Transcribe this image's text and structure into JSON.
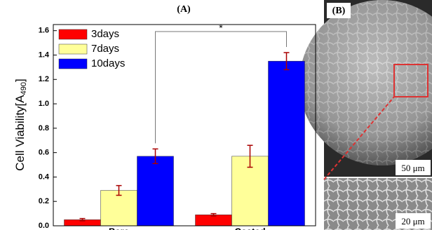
{
  "chart_data": {
    "type": "bar",
    "title": "(A)",
    "y_label": {
      "text": "Cell Viability[A",
      "subscript": "490",
      "suffix": "]"
    },
    "categories": [
      "Bare",
      "Coated"
    ],
    "series": [
      {
        "name": "3days",
        "color": "#ff0000",
        "values": [
          0.05,
          0.09
        ],
        "errors": [
          0.01,
          0.01
        ]
      },
      {
        "name": "7days",
        "color": "#ffff99",
        "values": [
          0.29,
          0.57
        ],
        "errors": [
          0.04,
          0.09
        ]
      },
      {
        "name": "10days",
        "color": "#0000ff",
        "values": [
          0.57,
          1.35
        ],
        "errors": [
          0.06,
          0.07
        ]
      }
    ],
    "ylim": [
      0,
      1.65
    ],
    "yticks": [
      {
        "value": 0,
        "label": "0.0"
      },
      0.2,
      0.4,
      0.6,
      0.8,
      {
        "value": 1,
        "label": "1.0"
      },
      1.2,
      1.4,
      1.6
    ],
    "legend": "upper left",
    "significance": "*"
  },
  "panel_b": {
    "label": "(B)",
    "scale_bars": [
      "50 μm",
      "20 μm"
    ]
  }
}
